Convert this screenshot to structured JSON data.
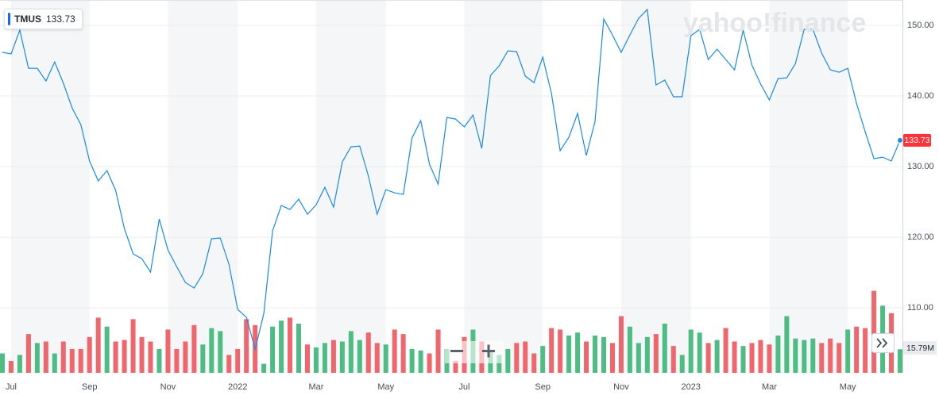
{
  "chart_data": {
    "type": "line",
    "watermark": "yahoo!finance",
    "categories": [
      null,
      "Jul",
      null,
      null,
      null,
      null,
      null,
      null,
      null,
      null,
      "Sep",
      null,
      null,
      null,
      null,
      null,
      null,
      null,
      null,
      "Nov",
      null,
      null,
      null,
      null,
      null,
      null,
      null,
      "2022",
      null,
      null,
      null,
      null,
      null,
      null,
      null,
      null,
      "Mar",
      null,
      null,
      null,
      null,
      null,
      null,
      null,
      "May",
      null,
      null,
      null,
      null,
      null,
      null,
      null,
      null,
      "Jul",
      null,
      null,
      null,
      null,
      null,
      null,
      null,
      null,
      "Sep",
      null,
      null,
      null,
      null,
      null,
      null,
      null,
      null,
      "Nov",
      null,
      null,
      null,
      null,
      null,
      null,
      null,
      "2023",
      null,
      null,
      null,
      null,
      null,
      null,
      null,
      null,
      "Mar",
      null,
      null,
      null,
      null,
      null,
      null,
      null,
      null,
      "May",
      null,
      null,
      null,
      null,
      null,
      null
    ],
    "series": [
      {
        "name": "TMUS",
        "color": "#1a8ae8",
        "values": [
          146.18,
          145.96,
          149.33,
          143.93,
          143.93,
          142.13,
          144.83,
          141.8,
          138.31,
          135.96,
          130.79,
          127.98,
          129.44,
          126.63,
          121.24,
          117.64,
          116.97,
          115.06,
          122.58,
          118.2,
          115.84,
          113.6,
          112.81,
          114.83,
          119.78,
          119.89,
          116.18,
          109.78,
          108.65,
          104.16,
          109.21,
          120.9,
          124.49,
          123.93,
          125.39,
          123.26,
          124.61,
          127.08,
          124.27,
          130.67,
          132.81,
          132.92,
          128.65,
          123.26,
          126.74,
          126.29,
          126.07,
          134.04,
          136.52,
          130.34,
          127.53,
          136.97,
          136.74,
          135.62,
          137.3,
          132.58,
          142.92,
          144.27,
          146.4,
          146.29,
          142.81,
          141.91,
          145.51,
          140.34,
          132.25,
          134.16,
          137.53,
          131.57,
          136.4,
          150.9,
          148.65,
          146.18,
          148.65,
          151.01,
          152.25,
          141.57,
          142.25,
          139.89,
          139.89,
          148.54,
          149.44,
          145.17,
          146.63,
          145.17,
          143.71,
          149.33,
          144.38,
          141.69,
          139.44,
          142.47,
          142.58,
          144.61,
          149.44,
          149.44,
          146.07,
          143.71,
          143.37,
          143.93,
          138.99,
          134.94,
          131.12,
          131.35,
          130.79,
          133.73
        ]
      },
      {
        "type": "bar",
        "axis": "y2",
        "up_color": "#4dbd84",
        "down_color": "#f0666c",
        "values": [
          13,
          8,
          12,
          26,
          20,
          21,
          13,
          21,
          16,
          16,
          24,
          37,
          31,
          21,
          22,
          36,
          24,
          21,
          16,
          29,
          16,
          21,
          32,
          19,
          30,
          28,
          12,
          16,
          36,
          32,
          6,
          31,
          35,
          37,
          33,
          19,
          17,
          20,
          22,
          21,
          28,
          22,
          27,
          20,
          19,
          29,
          26,
          16,
          15,
          13,
          29,
          16,
          8,
          24,
          29,
          21,
          14,
          12,
          16,
          20,
          21,
          13,
          18,
          30,
          29,
          25,
          27,
          21,
          25,
          24,
          20,
          38,
          31,
          20,
          24,
          26,
          33,
          18,
          12,
          29,
          27,
          20,
          22,
          30,
          21,
          18,
          20,
          22,
          19,
          25,
          38,
          23,
          22,
          23,
          20,
          23,
          20,
          29,
          31,
          30,
          55,
          45,
          40,
          15.79
        ],
        "value_labels": [
          null,
          null,
          null,
          null,
          null,
          null,
          null,
          null,
          null,
          null,
          null,
          null,
          null,
          null,
          null,
          null,
          null,
          null,
          null,
          null,
          null,
          null,
          null,
          null,
          null,
          null,
          null,
          null,
          null,
          null,
          null,
          null,
          null,
          null,
          null,
          null,
          null,
          null,
          null,
          null,
          null,
          null,
          null,
          null,
          null,
          null,
          null,
          null,
          null,
          null,
          null,
          null,
          null,
          null,
          null,
          null,
          null,
          null,
          null,
          null,
          null,
          null,
          null,
          null,
          null,
          null,
          null,
          null,
          null,
          null,
          null,
          null,
          null,
          null,
          null,
          null,
          null,
          null,
          null,
          null,
          null,
          null,
          null,
          null,
          null,
          null,
          null,
          null,
          null,
          null,
          null,
          null,
          null,
          null,
          null,
          null,
          null,
          null,
          null,
          null,
          null,
          null,
          null,
          "15.79M"
        ]
      }
    ],
    "ylim": [
      100.8,
      153.6
    ],
    "yticks": [
      {
        "value": 110,
        "label": "110.00"
      },
      {
        "value": 120,
        "label": "120.00"
      },
      {
        "value": 130,
        "label": "130.00"
      },
      {
        "value": 140,
        "label": "140.00"
      },
      {
        "value": 150,
        "label": "150.00"
      }
    ],
    "y2lim": [
      0,
      250
    ],
    "grid": true,
    "last_price_color": "#ff333a"
  }
}
